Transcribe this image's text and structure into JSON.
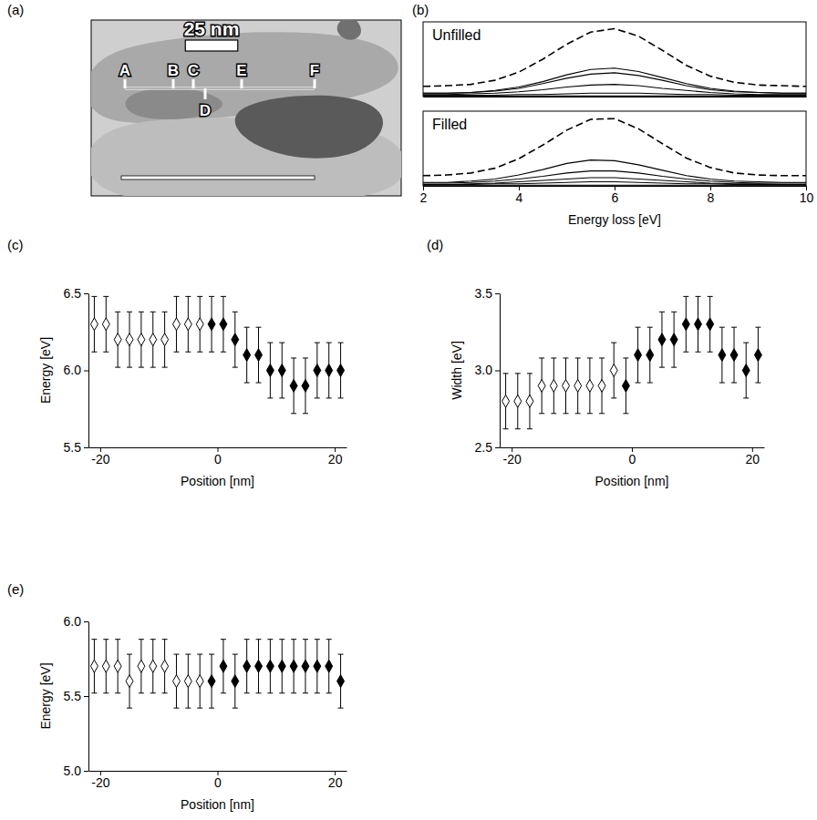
{
  "chart_data": [
    {
      "type": "image",
      "panel": "(a)",
      "scale_bar": {
        "value": 25,
        "label": "25 nm"
      },
      "labels": [
        "A",
        "B",
        "C",
        "D",
        "E",
        "F"
      ]
    },
    {
      "type": "line",
      "panel": "(b)",
      "title": "Unfilled",
      "x": [
        2,
        2.5,
        3,
        3.5,
        4,
        4.5,
        5,
        5.5,
        6,
        6.5,
        7,
        7.5,
        8,
        8.5,
        9,
        9.5,
        10
      ],
      "xlim": [
        2,
        10
      ],
      "ylim": [
        0,
        1.1
      ],
      "tick_labels": false,
      "series": [
        {
          "color": "#000000",
          "line_style": "dashed",
          "values": [
            0.15,
            0.16,
            0.18,
            0.24,
            0.36,
            0.55,
            0.77,
            0.95,
            1.0,
            0.89,
            0.68,
            0.46,
            0.3,
            0.21,
            0.17,
            0.16,
            0.15
          ]
        },
        {
          "color": "#000000",
          "line_style": "solid",
          "values": [
            0.05,
            0.05,
            0.06,
            0.09,
            0.14,
            0.22,
            0.32,
            0.4,
            0.42,
            0.37,
            0.28,
            0.19,
            0.12,
            0.08,
            0.06,
            0.05,
            0.05
          ]
        },
        {
          "color": "#000000",
          "line_style": "solid",
          "values": [
            0.05,
            0.05,
            0.06,
            0.08,
            0.12,
            0.19,
            0.27,
            0.33,
            0.35,
            0.31,
            0.24,
            0.16,
            0.1,
            0.07,
            0.06,
            0.05,
            0.05
          ]
        },
        {
          "color": "#000000",
          "line_style": "solid",
          "values": [
            0.03,
            0.03,
            0.04,
            0.05,
            0.07,
            0.1,
            0.14,
            0.17,
            0.18,
            0.16,
            0.12,
            0.09,
            0.06,
            0.04,
            0.03,
            0.03,
            0.03
          ]
        },
        {
          "color": "#000000",
          "line_style": "solid",
          "values": [
            0.02,
            0.02,
            0.02,
            0.02,
            0.03,
            0.03,
            0.04,
            0.05,
            0.05,
            0.05,
            0.04,
            0.03,
            0.03,
            0.02,
            0.02,
            0.02,
            0.02
          ]
        },
        {
          "color": "#000000",
          "line_style": "solid",
          "values": [
            0.01,
            0.01,
            0.01,
            0.01,
            0.01,
            0.01,
            0.01,
            0.01,
            0.01,
            0.01,
            0.01,
            0.01,
            0.01,
            0.01,
            0.01,
            0.01,
            0.01
          ]
        }
      ]
    },
    {
      "type": "line",
      "title": "Filled",
      "xlabel": "Energy loss [eV]",
      "x": [
        2,
        2.5,
        3,
        3.5,
        4,
        4.5,
        5,
        5.5,
        6,
        6.5,
        7,
        7.5,
        8,
        8.5,
        9,
        9.5,
        10
      ],
      "xlim": [
        2,
        10
      ],
      "xticks": [
        2,
        4,
        6,
        8,
        10
      ],
      "ylim": [
        0,
        1.1
      ],
      "tick_labels": "x",
      "series": [
        {
          "color": "#000000",
          "line_style": "dashed",
          "values": [
            0.15,
            0.16,
            0.19,
            0.26,
            0.4,
            0.6,
            0.82,
            0.98,
            0.99,
            0.84,
            0.62,
            0.41,
            0.27,
            0.19,
            0.16,
            0.15,
            0.15
          ]
        },
        {
          "color": "#000000",
          "line_style": "solid",
          "values": [
            0.05,
            0.05,
            0.07,
            0.1,
            0.16,
            0.24,
            0.33,
            0.38,
            0.37,
            0.31,
            0.23,
            0.15,
            0.1,
            0.07,
            0.06,
            0.05,
            0.05
          ]
        },
        {
          "color": "#000000",
          "line_style": "solid",
          "values": [
            0.04,
            0.04,
            0.05,
            0.07,
            0.1,
            0.14,
            0.19,
            0.22,
            0.22,
            0.19,
            0.14,
            0.1,
            0.07,
            0.05,
            0.04,
            0.04,
            0.04
          ]
        },
        {
          "color": "#000000",
          "line_style": "solid",
          "values": [
            0.02,
            0.02,
            0.03,
            0.04,
            0.06,
            0.08,
            0.1,
            0.12,
            0.12,
            0.1,
            0.08,
            0.06,
            0.04,
            0.03,
            0.03,
            0.02,
            0.02
          ]
        },
        {
          "color": "#000000",
          "line_style": "solid",
          "values": [
            0.02,
            0.02,
            0.02,
            0.03,
            0.03,
            0.04,
            0.05,
            0.06,
            0.06,
            0.05,
            0.04,
            0.03,
            0.03,
            0.02,
            0.02,
            0.02,
            0.02
          ]
        },
        {
          "color": "#000000",
          "line_style": "solid",
          "values": [
            0.01,
            0.01,
            0.01,
            0.01,
            0.01,
            0.01,
            0.01,
            0.01,
            0.01,
            0.01,
            0.01,
            0.01,
            0.01,
            0.01,
            0.01,
            0.01,
            0.01
          ]
        }
      ]
    },
    {
      "type": "scatter",
      "panel": "(c)",
      "xlabel": "Position [nm]",
      "ylabel": "Energy [eV]",
      "xlim": [
        -22,
        22
      ],
      "xticks": [
        -20,
        0,
        20
      ],
      "ylim": [
        5.5,
        6.5
      ],
      "yticks": [
        5.5,
        {
          "value": 6,
          "label": "6.0"
        },
        6.5
      ],
      "series": [
        {
          "color": "#000000",
          "marker": "open-diamond",
          "x": [
            -21,
            -19,
            -17,
            -15,
            -13,
            -11,
            -9,
            -7,
            -5,
            -3
          ],
          "values": [
            6.3,
            6.3,
            6.2,
            6.2,
            6.2,
            6.2,
            6.2,
            6.3,
            6.3,
            6.3
          ],
          "errors": [
            0.18,
            0.18,
            0.18,
            0.18,
            0.18,
            0.18,
            0.18,
            0.18,
            0.18,
            0.18
          ]
        },
        {
          "color": "#000000",
          "marker": "diamond",
          "x": [
            -1,
            1,
            3,
            5,
            7,
            9,
            11,
            13,
            15,
            17,
            19,
            21
          ],
          "values": [
            6.3,
            6.3,
            6.2,
            6.1,
            6.1,
            6.0,
            6.0,
            5.9,
            5.9,
            6.0,
            6.0,
            6.0
          ],
          "errors": [
            0.18,
            0.18,
            0.18,
            0.18,
            0.18,
            0.18,
            0.18,
            0.18,
            0.18,
            0.18,
            0.18,
            0.18
          ]
        }
      ]
    },
    {
      "type": "scatter",
      "panel": "(d)",
      "xlabel": "Position [nm]",
      "ylabel": "Width [eV]",
      "xlim": [
        -22,
        22
      ],
      "xticks": [
        -20,
        0,
        20
      ],
      "ylim": [
        2.5,
        3.5
      ],
      "yticks": [
        2.5,
        {
          "value": 3,
          "label": "3.0"
        },
        3.5
      ],
      "series": [
        {
          "color": "#000000",
          "marker": "open-diamond",
          "x": [
            -21,
            -19,
            -17,
            -15,
            -13,
            -11,
            -9,
            -7,
            -5,
            -3
          ],
          "values": [
            2.8,
            2.8,
            2.8,
            2.9,
            2.9,
            2.9,
            2.9,
            2.9,
            2.9,
            3.0
          ],
          "errors": [
            0.18,
            0.18,
            0.18,
            0.18,
            0.18,
            0.18,
            0.18,
            0.18,
            0.18,
            0.18
          ]
        },
        {
          "color": "#000000",
          "marker": "diamond",
          "x": [
            -1,
            1,
            3,
            5,
            7,
            9,
            11,
            13,
            15,
            17,
            19,
            21
          ],
          "values": [
            2.9,
            3.1,
            3.1,
            3.2,
            3.2,
            3.3,
            3.3,
            3.3,
            3.1,
            3.1,
            3.0,
            3.1
          ],
          "errors": [
            0.18,
            0.18,
            0.18,
            0.18,
            0.18,
            0.18,
            0.18,
            0.18,
            0.18,
            0.18,
            0.18,
            0.18
          ]
        }
      ]
    },
    {
      "type": "scatter",
      "panel": "(e)",
      "xlabel": "Position [nm]",
      "ylabel": "Energy [eV]",
      "xlim": [
        -22,
        22
      ],
      "xticks": [
        -20,
        0,
        20
      ],
      "ylim": [
        5,
        6
      ],
      "yticks": [
        {
          "value": 5,
          "label": "5.0"
        },
        5.5,
        {
          "value": 6,
          "label": "6.0"
        }
      ],
      "series": [
        {
          "color": "#000000",
          "marker": "open-diamond",
          "x": [
            -21,
            -19,
            -17,
            -15,
            -13,
            -11,
            -9,
            -7,
            -5,
            -3
          ],
          "values": [
            5.7,
            5.7,
            5.7,
            5.6,
            5.7,
            5.7,
            5.7,
            5.6,
            5.6,
            5.6
          ],
          "errors": [
            0.18,
            0.18,
            0.18,
            0.18,
            0.18,
            0.18,
            0.18,
            0.18,
            0.18,
            0.18
          ]
        },
        {
          "color": "#000000",
          "marker": "diamond",
          "x": [
            -1,
            1,
            3,
            5,
            7,
            9,
            11,
            13,
            15,
            17,
            19,
            21
          ],
          "values": [
            5.6,
            5.7,
            5.6,
            5.7,
            5.7,
            5.7,
            5.7,
            5.7,
            5.7,
            5.7,
            5.7,
            5.6
          ],
          "errors": [
            0.18,
            0.18,
            0.18,
            0.18,
            0.18,
            0.18,
            0.18,
            0.18,
            0.18,
            0.18,
            0.18,
            0.18
          ]
        }
      ]
    }
  ]
}
